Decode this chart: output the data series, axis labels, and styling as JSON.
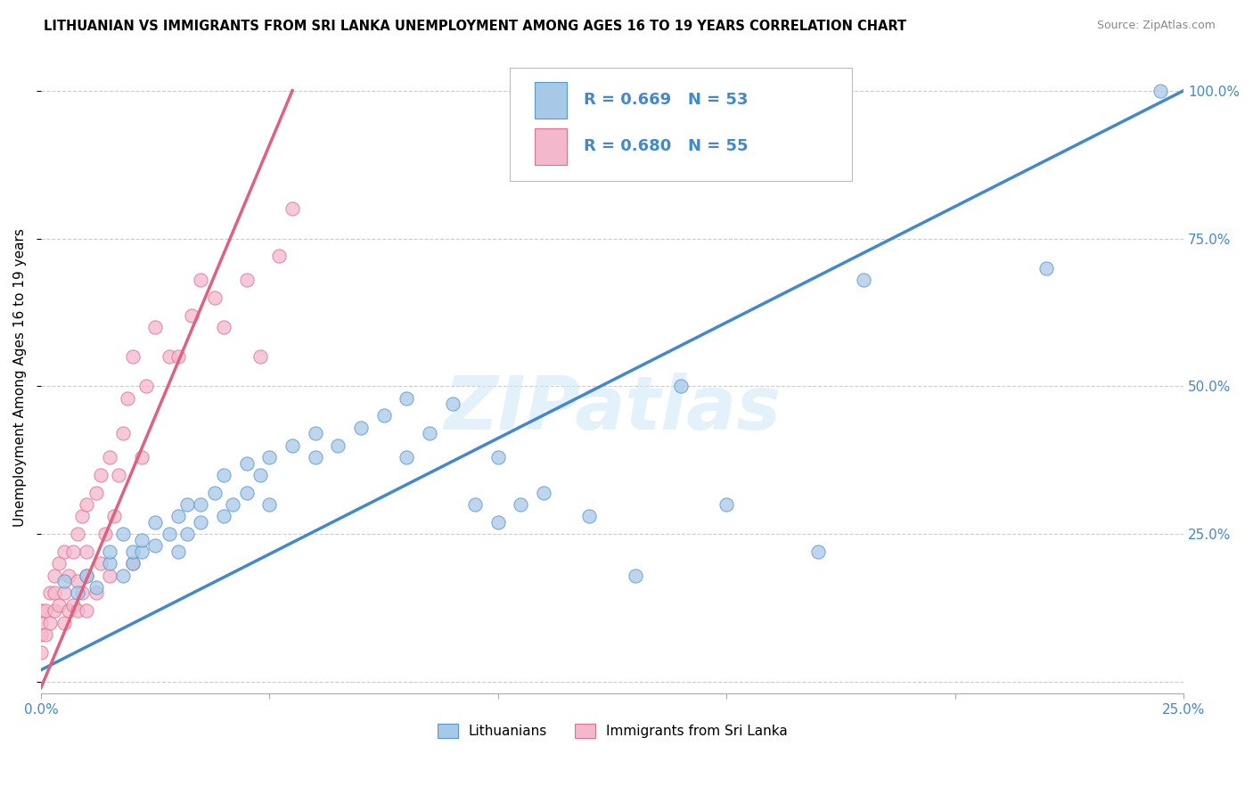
{
  "title": "LITHUANIAN VS IMMIGRANTS FROM SRI LANKA UNEMPLOYMENT AMONG AGES 16 TO 19 YEARS CORRELATION CHART",
  "source": "Source: ZipAtlas.com",
  "ylabel": "Unemployment Among Ages 16 to 19 years",
  "xlim": [
    0,
    0.25
  ],
  "ylim": [
    -0.02,
    1.05
  ],
  "xticks": [
    0.0,
    0.05,
    0.1,
    0.15,
    0.2,
    0.25
  ],
  "xtick_labels": [
    "0.0%",
    "",
    "",
    "",
    "",
    "25.0%"
  ],
  "ytick_labels_right": [
    "",
    "25.0%",
    "50.0%",
    "75.0%",
    "100.0%"
  ],
  "yticks_right": [
    0.0,
    0.25,
    0.5,
    0.75,
    1.0
  ],
  "blue_R": "0.669",
  "blue_N": "53",
  "pink_R": "0.680",
  "pink_N": "55",
  "blue_color": "#a8c8e8",
  "pink_color": "#f4b8cc",
  "blue_edge_color": "#5599cc",
  "pink_edge_color": "#e07090",
  "blue_line_color": "#4488cc",
  "pink_line_color": "#e06080",
  "watermark": "ZIPatlas",
  "legend_labels": [
    "Lithuanians",
    "Immigrants from Sri Lanka"
  ],
  "blue_line_x": [
    0.0,
    0.25
  ],
  "blue_line_y": [
    0.02,
    1.0
  ],
  "pink_line_x": [
    0.0,
    0.055
  ],
  "pink_line_y": [
    -0.01,
    1.0
  ],
  "blue_scatter_x": [
    0.005,
    0.008,
    0.01,
    0.012,
    0.015,
    0.015,
    0.018,
    0.018,
    0.02,
    0.02,
    0.022,
    0.022,
    0.025,
    0.025,
    0.028,
    0.03,
    0.03,
    0.032,
    0.032,
    0.035,
    0.035,
    0.038,
    0.04,
    0.04,
    0.042,
    0.045,
    0.045,
    0.048,
    0.05,
    0.05,
    0.055,
    0.06,
    0.06,
    0.065,
    0.07,
    0.075,
    0.08,
    0.08,
    0.085,
    0.09,
    0.095,
    0.1,
    0.1,
    0.105,
    0.11,
    0.12,
    0.13,
    0.14,
    0.15,
    0.17,
    0.18,
    0.22,
    0.245
  ],
  "blue_scatter_y": [
    0.17,
    0.15,
    0.18,
    0.16,
    0.2,
    0.22,
    0.18,
    0.25,
    0.2,
    0.22,
    0.22,
    0.24,
    0.23,
    0.27,
    0.25,
    0.22,
    0.28,
    0.25,
    0.3,
    0.27,
    0.3,
    0.32,
    0.28,
    0.35,
    0.3,
    0.32,
    0.37,
    0.35,
    0.3,
    0.38,
    0.4,
    0.38,
    0.42,
    0.4,
    0.43,
    0.45,
    0.38,
    0.48,
    0.42,
    0.47,
    0.3,
    0.38,
    0.27,
    0.3,
    0.32,
    0.28,
    0.18,
    0.5,
    0.3,
    0.22,
    0.68,
    0.7,
    1.0
  ],
  "pink_scatter_x": [
    0.0,
    0.0,
    0.0,
    0.0,
    0.001,
    0.001,
    0.002,
    0.002,
    0.003,
    0.003,
    0.003,
    0.004,
    0.004,
    0.005,
    0.005,
    0.005,
    0.006,
    0.006,
    0.007,
    0.007,
    0.008,
    0.008,
    0.008,
    0.009,
    0.009,
    0.01,
    0.01,
    0.01,
    0.01,
    0.012,
    0.012,
    0.013,
    0.013,
    0.014,
    0.015,
    0.015,
    0.016,
    0.017,
    0.018,
    0.019,
    0.02,
    0.02,
    0.022,
    0.023,
    0.025,
    0.028,
    0.03,
    0.033,
    0.035,
    0.038,
    0.04,
    0.045,
    0.048,
    0.052,
    0.055
  ],
  "pink_scatter_y": [
    0.05,
    0.08,
    0.1,
    0.12,
    0.08,
    0.12,
    0.1,
    0.15,
    0.12,
    0.15,
    0.18,
    0.13,
    0.2,
    0.1,
    0.15,
    0.22,
    0.12,
    0.18,
    0.13,
    0.22,
    0.12,
    0.17,
    0.25,
    0.15,
    0.28,
    0.12,
    0.18,
    0.22,
    0.3,
    0.15,
    0.32,
    0.2,
    0.35,
    0.25,
    0.18,
    0.38,
    0.28,
    0.35,
    0.42,
    0.48,
    0.2,
    0.55,
    0.38,
    0.5,
    0.6,
    0.55,
    0.55,
    0.62,
    0.68,
    0.65,
    0.6,
    0.68,
    0.55,
    0.72,
    0.8
  ]
}
